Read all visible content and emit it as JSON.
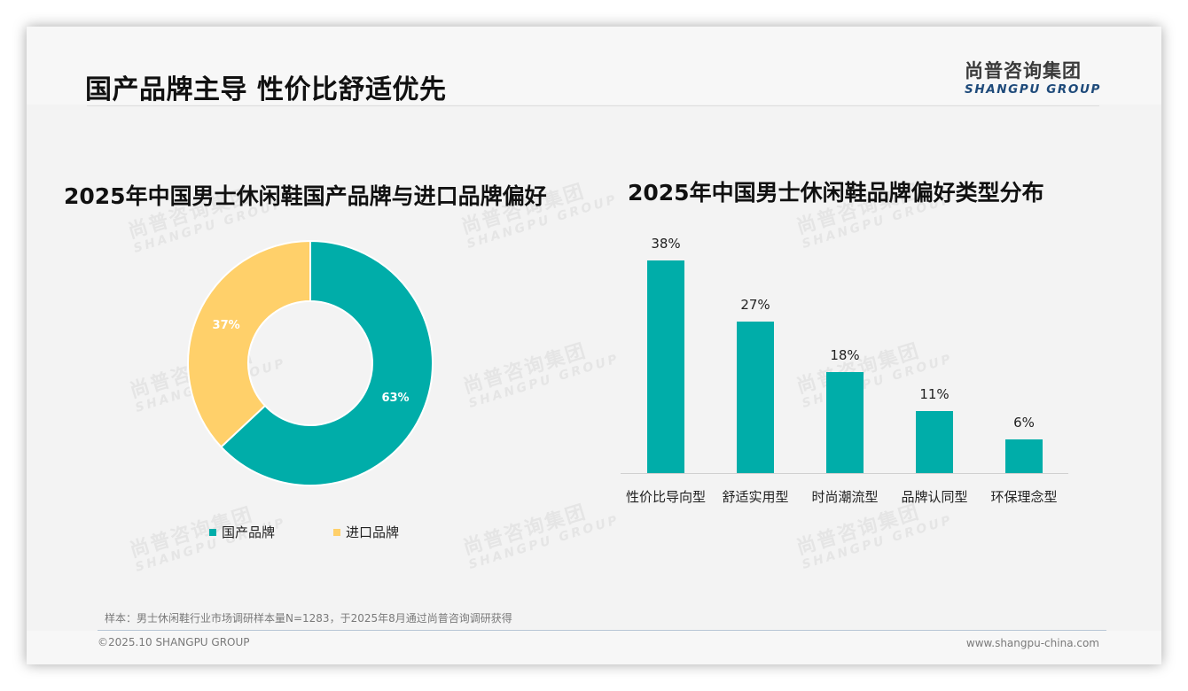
{
  "header": {
    "title": "国产品牌主导 性价比舒适优先",
    "logo_cn": "尚普咨询集团",
    "logo_en": "SHANGPU GROUP"
  },
  "watermark": {
    "cn": "尚普咨询集团",
    "en": "SHANGPU GROUP"
  },
  "colors": {
    "teal": "#00ada9",
    "yellow": "#ffd06a",
    "background": "#f3f3f3",
    "text": "#111111",
    "logo_blue": "#1e4a7a"
  },
  "donut": {
    "title": "2025年中国男士休闲鞋国产品牌与进口品牌偏好",
    "slices": [
      {
        "label": "国产品牌",
        "value": 63,
        "display": "63%",
        "color": "#00ada9"
      },
      {
        "label": "进口品牌",
        "value": 37,
        "display": "37%",
        "color": "#ffd06a"
      }
    ]
  },
  "bars": {
    "title": "2025年中国男士休闲鞋品牌偏好类型分布",
    "items": [
      {
        "label": "性价比导向型",
        "value": 38,
        "display": "38%"
      },
      {
        "label": "舒适实用型",
        "value": 27,
        "display": "27%"
      },
      {
        "label": "时尚潮流型",
        "value": 18,
        "display": "18%"
      },
      {
        "label": "品牌认同型",
        "value": 11,
        "display": "11%"
      },
      {
        "label": "环保理念型",
        "value": 6,
        "display": "6%"
      }
    ]
  },
  "footer": {
    "note": "样本：男士休闲鞋行业市场调研样本量N=1283，于2025年8月通过尚普咨询调研获得",
    "copyright": "©2025.10 SHANGPU GROUP",
    "website": "www.shangpu-china.com"
  },
  "chart_data": [
    {
      "type": "pie",
      "title": "2025年中国男士休闲鞋国产品牌与进口品牌偏好",
      "categories": [
        "国产品牌",
        "进口品牌"
      ],
      "values": [
        63,
        37
      ],
      "unit": "%",
      "donut": true,
      "colors": [
        "#00ada9",
        "#ffd06a"
      ],
      "legend_position": "bottom"
    },
    {
      "type": "bar",
      "title": "2025年中国男士休闲鞋品牌偏好类型分布",
      "categories": [
        "性价比导向型",
        "舒适实用型",
        "时尚潮流型",
        "品牌认同型",
        "环保理念型"
      ],
      "values": [
        38,
        27,
        18,
        11,
        6
      ],
      "unit": "%",
      "xlabel": "",
      "ylabel": "",
      "ylim": [
        0,
        40
      ],
      "grid": false,
      "data_labels": true,
      "color": "#00ada9"
    }
  ]
}
